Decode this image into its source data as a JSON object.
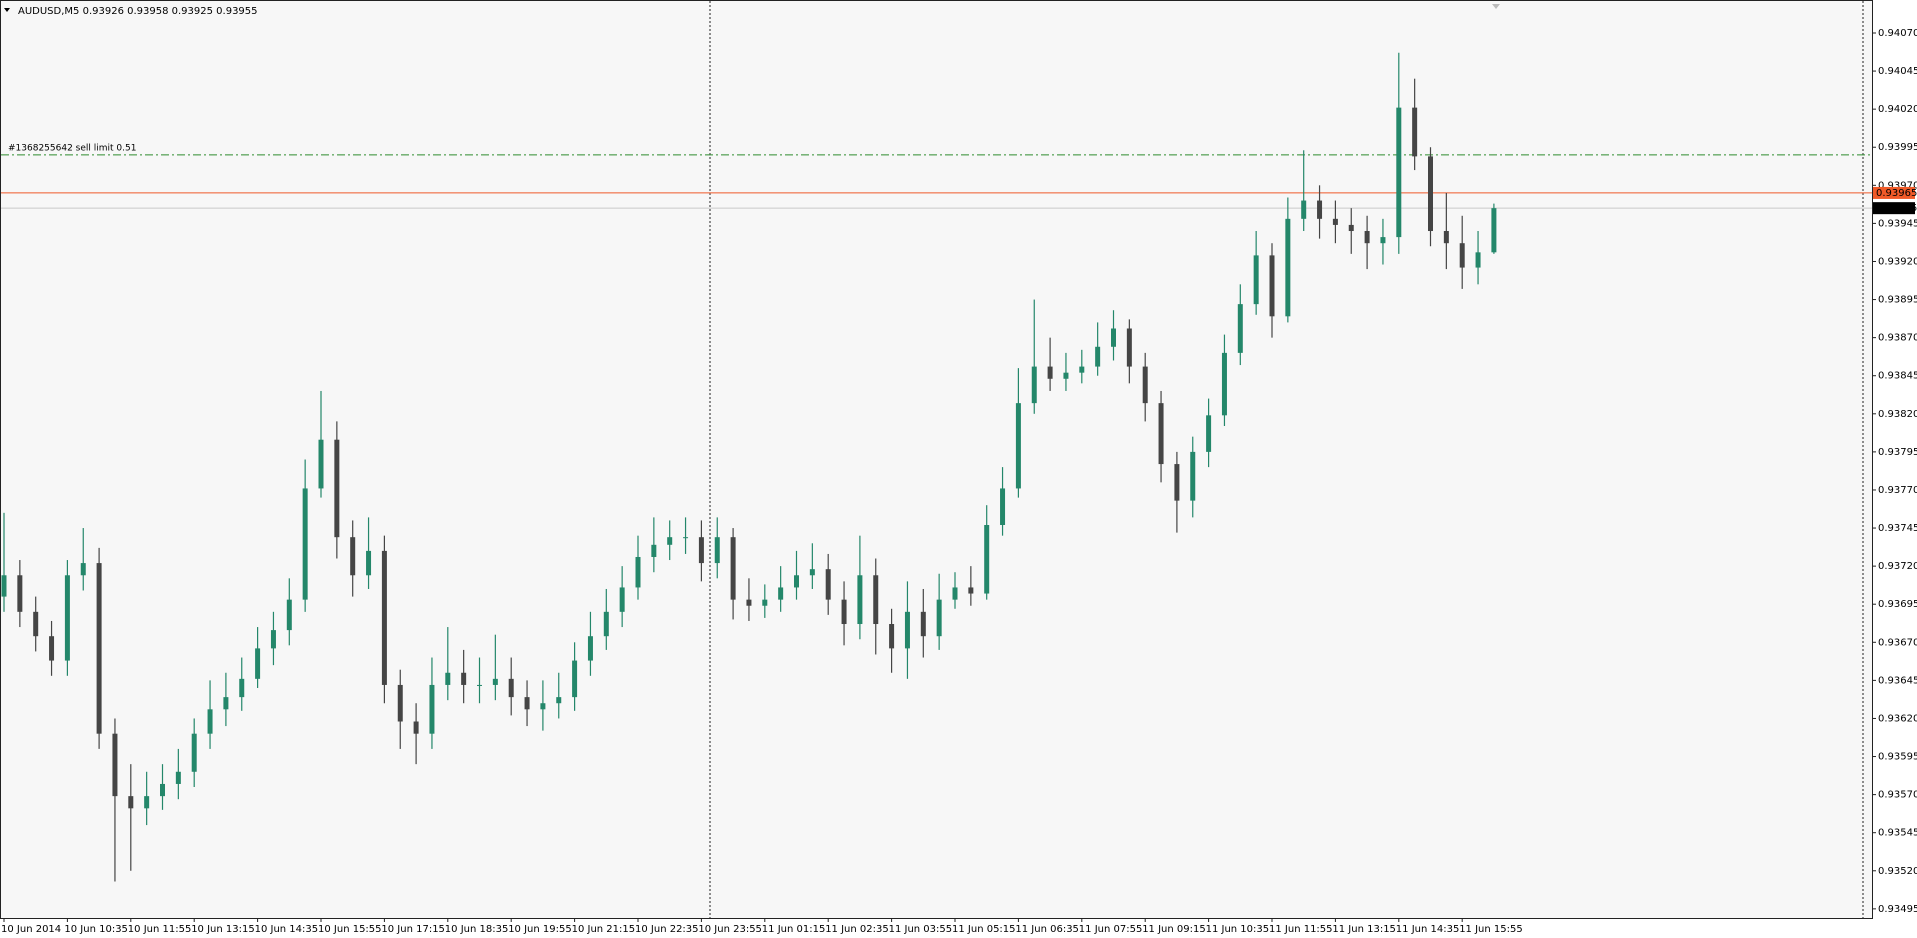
{
  "chart_data": {
    "type": "candlestick",
    "title": "AUDUSD,M5  0.93926 0.93958 0.93925 0.93955",
    "categories": [
      "10 Jun 2014",
      null,
      null,
      null,
      "10 Jun 10:35",
      null,
      null,
      null,
      "10 Jun 11:55",
      null,
      null,
      null,
      "10 Jun 13:15",
      null,
      null,
      null,
      "10 Jun 14:35",
      null,
      null,
      null,
      "10 Jun 15:55",
      null,
      null,
      null,
      "10 Jun 17:15",
      null,
      null,
      null,
      "10 Jun 18:35",
      null,
      null,
      null,
      "10 Jun 19:55",
      null,
      null,
      null,
      "10 Jun 21:15",
      null,
      null,
      null,
      "10 Jun 22:35",
      null,
      null,
      null,
      "10 Jun 23:55",
      null,
      null,
      null,
      "11 Jun 01:15",
      null,
      null,
      null,
      "11 Jun 02:35",
      null,
      null,
      null,
      "11 Jun 03:55",
      null,
      null,
      null,
      "11 Jun 05:15",
      null,
      null,
      null,
      "11 Jun 06:35",
      null,
      null,
      null,
      "11 Jun 07:55",
      null,
      null,
      null,
      "11 Jun 09:15",
      null,
      null,
      null,
      "11 Jun 10:35",
      null,
      null,
      null,
      "11 Jun 11:55",
      null,
      null,
      null,
      "11 Jun 13:15",
      null,
      null,
      null,
      "11 Jun 14:35",
      null,
      null,
      null,
      "11 Jun 15:55",
      null,
      null
    ],
    "open": [
      0.937,
      0.93714,
      0.9369,
      0.93674,
      0.93658,
      0.93714,
      0.93722,
      0.9361,
      0.93569,
      0.93561,
      0.93569,
      0.93577,
      0.93585,
      0.9361,
      0.93626,
      0.93634,
      0.93646,
      0.93666,
      0.93678,
      0.93698,
      0.93771,
      0.93803,
      0.93739,
      0.93714,
      0.9373,
      0.93642,
      0.93618,
      0.9361,
      0.93642,
      0.9365,
      0.93642,
      0.93642,
      0.93646,
      0.93634,
      0.93626,
      0.9363,
      0.93634,
      0.93658,
      0.93674,
      0.9369,
      0.93706,
      0.93726,
      0.93734,
      0.93739,
      0.93739,
      0.93722,
      0.93739,
      0.93698,
      0.93694,
      0.93698,
      0.93706,
      0.93714,
      0.93718,
      0.93698,
      0.93682,
      0.93714,
      0.93682,
      0.93666,
      0.9369,
      0.93674,
      0.93698,
      0.93706,
      0.93702,
      0.93747,
      0.93771,
      0.93827,
      0.93851,
      0.93843,
      0.93847,
      0.93851,
      0.93864,
      0.93876,
      0.93851,
      0.93827,
      0.93787,
      0.93763,
      0.93795,
      0.93819,
      0.9386,
      0.93892,
      0.93924,
      0.93884,
      0.93948,
      0.9396,
      0.93948,
      0.93944,
      0.9394,
      0.93932,
      0.93936,
      0.94021,
      0.93989,
      0.9394,
      0.93932,
      0.93916,
      0.93926
    ],
    "high": [
      0.93755,
      0.93724,
      0.937,
      0.93684,
      0.93724,
      0.93745,
      0.93732,
      0.9362,
      0.9359,
      0.93585,
      0.9359,
      0.936,
      0.9362,
      0.93645,
      0.9365,
      0.9366,
      0.9368,
      0.9369,
      0.93712,
      0.9379,
      0.93835,
      0.93815,
      0.9375,
      0.93752,
      0.9374,
      0.93652,
      0.9363,
      0.9366,
      0.9368,
      0.93665,
      0.9366,
      0.93675,
      0.9366,
      0.93645,
      0.93645,
      0.9365,
      0.9367,
      0.9369,
      0.93705,
      0.9372,
      0.9374,
      0.93752,
      0.9375,
      0.93752,
      0.9375,
      0.93752,
      0.93745,
      0.93712,
      0.93708,
      0.9372,
      0.9373,
      0.93735,
      0.93728,
      0.9371,
      0.9374,
      0.93725,
      0.93692,
      0.9371,
      0.93705,
      0.93715,
      0.93716,
      0.9372,
      0.9376,
      0.93785,
      0.9385,
      0.93895,
      0.9387,
      0.9386,
      0.93862,
      0.9388,
      0.93888,
      0.93882,
      0.9386,
      0.93835,
      0.93795,
      0.93805,
      0.9383,
      0.93872,
      0.93905,
      0.9394,
      0.93932,
      0.93962,
      0.93993,
      0.9397,
      0.9396,
      0.93955,
      0.9395,
      0.93948,
      0.94057,
      0.9404,
      0.93995,
      0.93965,
      0.9395,
      0.9394,
      0.93958
    ],
    "low": [
      0.9369,
      0.9368,
      0.93664,
      0.93648,
      0.93648,
      0.93704,
      0.936,
      0.93513,
      0.9352,
      0.9355,
      0.9356,
      0.93567,
      0.93575,
      0.936,
      0.93615,
      0.93625,
      0.9364,
      0.93655,
      0.93668,
      0.9369,
      0.93765,
      0.93725,
      0.937,
      0.93705,
      0.9363,
      0.936,
      0.9359,
      0.936,
      0.93632,
      0.9363,
      0.9363,
      0.93632,
      0.93622,
      0.93615,
      0.93612,
      0.9362,
      0.93625,
      0.93648,
      0.93665,
      0.9368,
      0.93698,
      0.93716,
      0.93724,
      0.93728,
      0.9371,
      0.93712,
      0.93685,
      0.93684,
      0.93686,
      0.9369,
      0.93698,
      0.93705,
      0.93688,
      0.93668,
      0.93672,
      0.93662,
      0.9365,
      0.93646,
      0.9366,
      0.93665,
      0.93692,
      0.93694,
      0.93698,
      0.9374,
      0.93765,
      0.9382,
      0.93835,
      0.93835,
      0.9384,
      0.93845,
      0.93855,
      0.9384,
      0.93815,
      0.93775,
      0.93742,
      0.93752,
      0.93785,
      0.93812,
      0.93852,
      0.93885,
      0.9387,
      0.9388,
      0.9394,
      0.93935,
      0.93932,
      0.93925,
      0.93915,
      0.93918,
      0.93925,
      0.9398,
      0.9393,
      0.93915,
      0.93902,
      0.93905,
      0.93925
    ],
    "close": [
      0.93714,
      0.9369,
      0.93674,
      0.93658,
      0.93714,
      0.93722,
      0.9361,
      0.93569,
      0.93561,
      0.93569,
      0.93577,
      0.93585,
      0.9361,
      0.93626,
      0.93634,
      0.93646,
      0.93666,
      0.93678,
      0.93698,
      0.93771,
      0.93803,
      0.93739,
      0.93714,
      0.9373,
      0.93642,
      0.93618,
      0.9361,
      0.93642,
      0.9365,
      0.93642,
      0.93642,
      0.93646,
      0.93634,
      0.93626,
      0.9363,
      0.93634,
      0.93658,
      0.93674,
      0.9369,
      0.93706,
      0.93726,
      0.93734,
      0.93739,
      0.93739,
      0.93722,
      0.93739,
      0.93698,
      0.93694,
      0.93698,
      0.93706,
      0.93714,
      0.93718,
      0.93698,
      0.93682,
      0.93714,
      0.93682,
      0.93666,
      0.9369,
      0.93674,
      0.93698,
      0.93706,
      0.93702,
      0.93747,
      0.93771,
      0.93827,
      0.93851,
      0.93843,
      0.93847,
      0.93851,
      0.93864,
      0.93876,
      0.93851,
      0.93827,
      0.93787,
      0.93763,
      0.93795,
      0.93819,
      0.9386,
      0.93892,
      0.93924,
      0.93884,
      0.93948,
      0.9396,
      0.93948,
      0.93944,
      0.9394,
      0.93932,
      0.93936,
      0.94021,
      0.93989,
      0.9394,
      0.93932,
      0.93916,
      0.93926,
      0.93955
    ],
    "bull_color": "#24876a",
    "bear_color": "#454545",
    "ylim": [
      0.93489,
      0.94091
    ],
    "yticks": [
      0.93495,
      {
        "value": 0.9352,
        "label": "0.93520"
      },
      0.93545,
      {
        "value": 0.9357,
        "label": "0.93570"
      },
      0.93595,
      {
        "value": 0.9362,
        "label": "0.93620"
      },
      0.93645,
      {
        "value": 0.9367,
        "label": "0.93670"
      },
      0.93695,
      {
        "value": 0.9372,
        "label": "0.93720"
      },
      0.93745,
      {
        "value": 0.9377,
        "label": "0.93770"
      },
      0.93795,
      {
        "value": 0.9382,
        "label": "0.93820"
      },
      0.93845,
      {
        "value": 0.9387,
        "label": "0.93870"
      },
      0.93895,
      {
        "value": 0.9392,
        "label": "0.93920"
      },
      0.93945,
      {
        "value": 0.9397,
        "label": "0.93970"
      },
      0.93995,
      {
        "value": 0.9402,
        "label": "0.94020"
      },
      0.94045,
      {
        "value": 0.9407,
        "label": "0.94070"
      }
    ],
    "grid": false,
    "order_line": {
      "label": "#1368255642 sell limit 0.51",
      "price": 0.9399,
      "color": "#2e8b2e"
    },
    "ask": {
      "price": 0.93965,
      "color": "#f05a28"
    },
    "bid": {
      "price": 0.93955,
      "color": "#000000"
    }
  }
}
